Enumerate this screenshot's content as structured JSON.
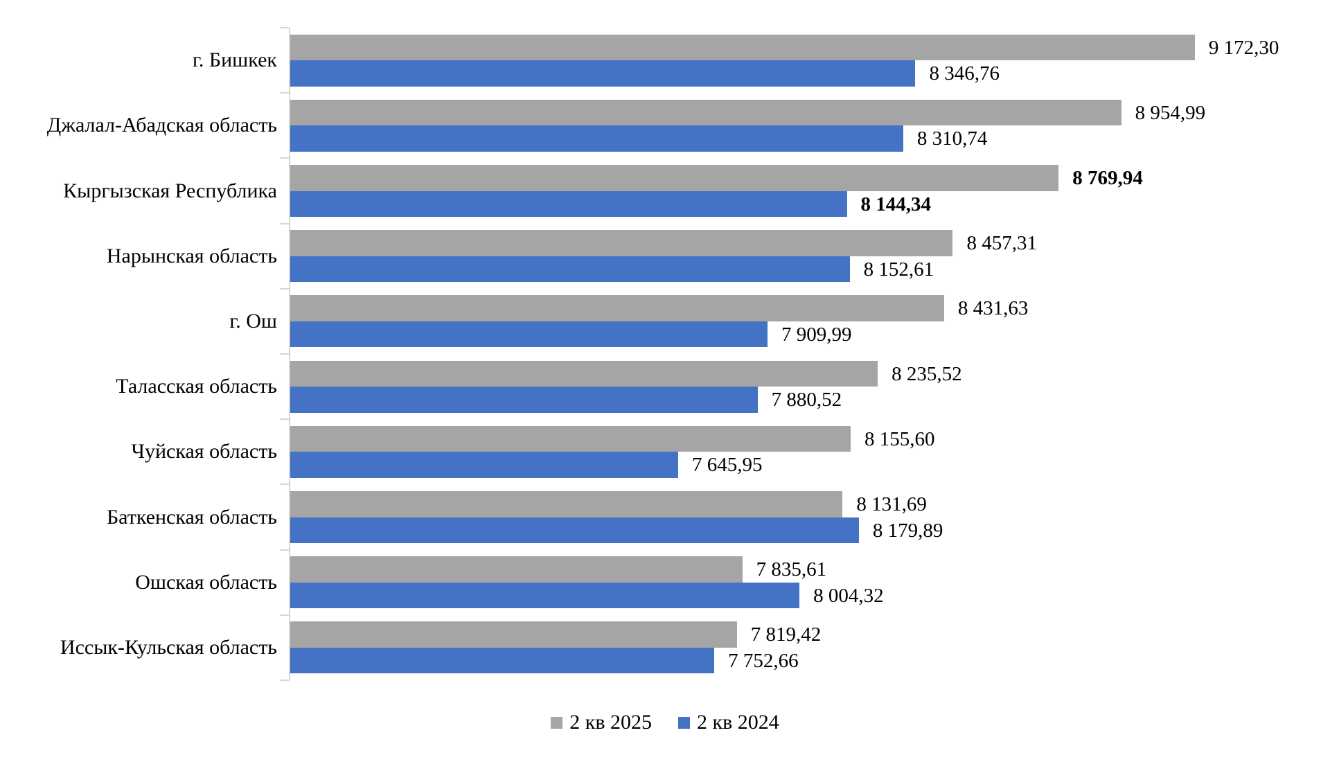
{
  "colors": {
    "series_2025": "#a5a5a5",
    "series_2024": "#4472c4",
    "axis": "#d6d6d6",
    "text": "#000000",
    "background": "#ffffff"
  },
  "legend": {
    "position": "bottom",
    "items": [
      {
        "label": "2 кв 2025",
        "color": "#a5a5a5"
      },
      {
        "label": "2 кв 2024",
        "color": "#4472c4"
      }
    ]
  },
  "chart_data": {
    "type": "bar",
    "orientation": "horizontal",
    "title": "",
    "xlabel": "",
    "ylabel": "",
    "grid": false,
    "legend_position": "bottom",
    "xlim": [
      6500,
      9500
    ],
    "bold_category_index": 2,
    "categories": [
      "г. Бишкек",
      "Джалал-Абадская область",
      "Кыргызская Республика",
      "Нарынская область",
      "г. Ош",
      "Таласская область",
      "Чуйская область",
      "Баткенская область",
      "Ошская область",
      "Иссык-Кульская область"
    ],
    "series": [
      {
        "name": "2 кв 2025",
        "color": "#a5a5a5",
        "values": [
          9172.3,
          8954.99,
          8769.94,
          8457.31,
          8431.63,
          8235.52,
          8155.6,
          8131.69,
          7835.61,
          7819.42
        ],
        "labels": [
          "9 172,30",
          "8 954,99",
          "8 769,94",
          "8 457,31",
          "8 431,63",
          "8 235,52",
          "8 155,60",
          "8 131,69",
          "7 835,61",
          "7 819,42"
        ]
      },
      {
        "name": "2 кв 2024",
        "color": "#4472c4",
        "values": [
          8346.76,
          8310.74,
          8144.34,
          8152.61,
          7909.99,
          7880.52,
          7645.95,
          8179.89,
          8004.32,
          7752.66
        ],
        "labels": [
          "8 346,76",
          "8 310,74",
          "8 144,34",
          "8 152,61",
          "7 909,99",
          "7 880,52",
          "7 645,95",
          "8 179,89",
          "8 004,32",
          "7 752,66"
        ]
      }
    ]
  }
}
